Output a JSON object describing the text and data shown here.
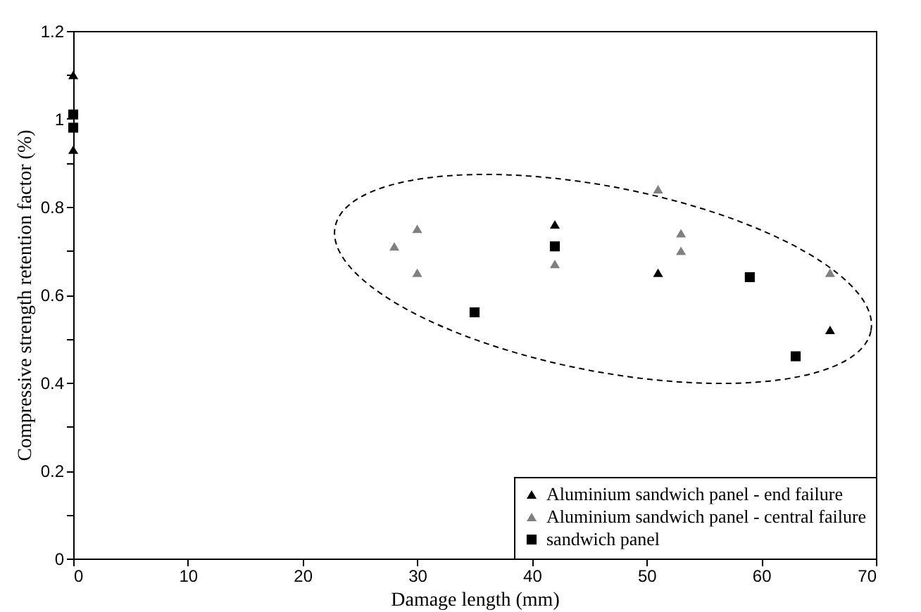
{
  "chart_data": {
    "type": "scatter",
    "xlabel": "Damage length (mm)",
    "ylabel": "Compressive strength retention factor (%)",
    "xlim": [
      0,
      70
    ],
    "xticks": [
      0,
      10,
      20,
      30,
      40,
      50,
      60,
      70
    ],
    "ylim": [
      0,
      1.2
    ],
    "yticks": [
      0,
      {
        "value": 0.1,
        "label": null
      },
      0.2,
      {
        "value": 0.3,
        "label": null
      },
      0.4,
      {
        "value": 0.5,
        "label": null
      },
      0.6,
      {
        "value": 0.7,
        "label": null
      },
      0.8,
      {
        "value": 0.9,
        "label": null
      },
      1,
      {
        "value": 1.1,
        "label": null
      },
      1.2
    ],
    "grid": false,
    "legend": "bottom right",
    "series": [
      {
        "name": "Aluminium sandwich panel - end failure",
        "color": "#000000",
        "marker": "triangle",
        "x": [
          0,
          0,
          42,
          51,
          66
        ],
        "values": [
          1.1,
          0.93,
          0.76,
          0.65,
          0.52
        ]
      },
      {
        "name": "Aluminium sandwich panel - central failure",
        "color": "#808080",
        "marker": "triangle",
        "x": [
          28,
          30,
          30,
          42,
          51,
          53,
          53,
          66
        ],
        "values": [
          0.71,
          0.75,
          0.65,
          0.67,
          0.84,
          0.74,
          0.7,
          0.65
        ]
      },
      {
        "name": "sandwich panel",
        "color": "#000000",
        "marker": "square",
        "x": [
          0,
          0,
          35,
          42,
          59,
          63
        ],
        "values": [
          1.01,
          0.98,
          0.56,
          0.71,
          0.64,
          0.46
        ]
      }
    ]
  }
}
